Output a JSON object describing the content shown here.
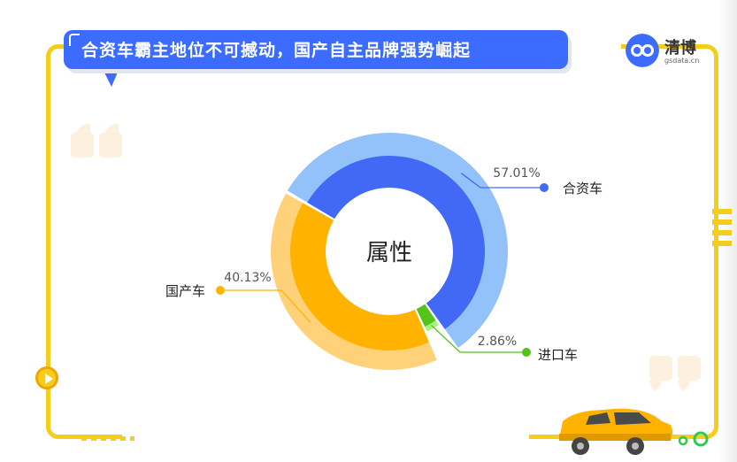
{
  "header": {
    "title": "合资车霸主地位不可撼动，国产自主品牌强势崛起",
    "brand_name": "清博",
    "brand_url": "gsdata.cn"
  },
  "icons": [
    "quote-open-icon",
    "quote-close-icon",
    "play-icon",
    "car-icon",
    "logo-icon"
  ],
  "colors": {
    "frame": "#f5cd1c",
    "title_bg": "#3b6cff",
    "joint": "#4169f5",
    "joint_light": "#93c2fb",
    "domestic": "#ffb300",
    "domestic_light": "#ffd27a",
    "imported": "#52c41a",
    "imported_light": "#a7f27a"
  },
  "chart_data": {
    "type": "pie",
    "center_label": "属性",
    "title": "",
    "slices": [
      {
        "label": "合资车",
        "value": 57.01,
        "value_label": "57.01%"
      },
      {
        "label": "进口车",
        "value": 2.86,
        "value_label": "2.86%"
      },
      {
        "label": "国产车",
        "value": 40.13,
        "value_label": "40.13%"
      }
    ]
  }
}
